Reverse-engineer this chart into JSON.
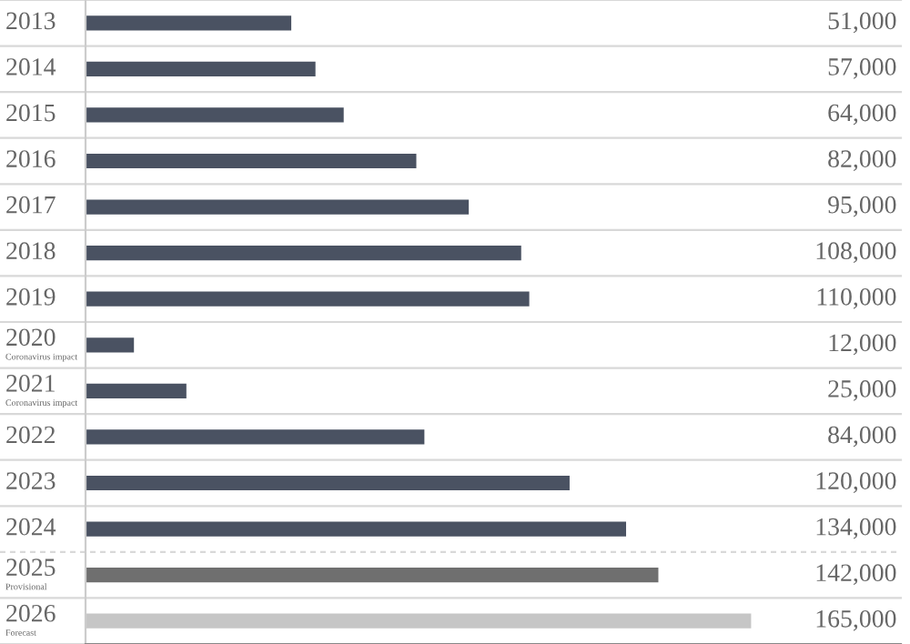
{
  "chart_data": {
    "type": "bar",
    "orientation": "horizontal",
    "categories": [
      "2013",
      "2014",
      "2015",
      "2016",
      "2017",
      "2018",
      "2019",
      "2020\nCoronavirus impact",
      "2021\nCoronavirus impact",
      "2022",
      "2023",
      "2024",
      "2025\nProvisional",
      "2026\nForecast"
    ],
    "values": [
      51000,
      57000,
      64000,
      82000,
      95000,
      108000,
      110000,
      12000,
      25000,
      84000,
      120000,
      134000,
      142000,
      165000
    ],
    "colors": [
      "#4a5262",
      "#4a5262",
      "#4a5262",
      "#4a5262",
      "#4a5262",
      "#4a5262",
      "#4a5262",
      "#4a5262",
      "#4a5262",
      "#4a5262",
      "#4a5262",
      "#4a5262",
      "#6f6f6f",
      "#c6c6c6"
    ],
    "value_labels": [
      "51,000",
      "57,000",
      "64,000",
      "82,000",
      "95,000",
      "108,000",
      "110,000",
      "12,000",
      "25,000",
      "84,000",
      "120,000",
      "134,000",
      "142,000",
      "165,000"
    ],
    "legend": false
  }
}
